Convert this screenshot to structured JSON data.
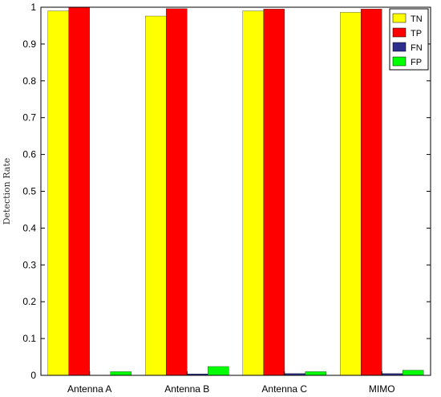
{
  "chart_data": {
    "type": "bar",
    "categories": [
      "Antenna A",
      "Antenna B",
      "Antenna C",
      "MIMO"
    ],
    "series": [
      {
        "name": "TN",
        "color": "#ffff00",
        "values": [
          0.99,
          0.976,
          0.99,
          0.986
        ]
      },
      {
        "name": "TP",
        "color": "#ff0000",
        "values": [
          1.0,
          0.996,
          0.995,
          0.995
        ]
      },
      {
        "name": "FN",
        "color": "#2e2e8c",
        "values": [
          0.0,
          0.004,
          0.005,
          0.005
        ]
      },
      {
        "name": "FP",
        "color": "#00ff00",
        "values": [
          0.01,
          0.024,
          0.01,
          0.014
        ]
      }
    ],
    "ylabel": "Detection Rate",
    "ylim": [
      0,
      1
    ],
    "yticks": [
      "0",
      "0.1",
      "0.2",
      "0.3",
      "0.4",
      "0.5",
      "0.6",
      "0.7",
      "0.8",
      "0.9",
      "1"
    ],
    "grid": false,
    "legend": "top-right"
  }
}
